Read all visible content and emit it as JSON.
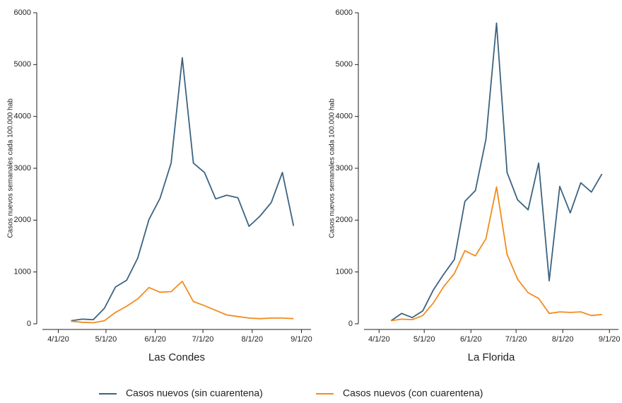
{
  "chart_data": [
    {
      "type": "line",
      "title": "Las Condes",
      "y_label": "Casos nuevos semanales cada 100.000 hab",
      "x": [
        "4/9/20",
        "4/16/20",
        "4/23/20",
        "4/30/20",
        "5/7/20",
        "5/14/20",
        "5/21/20",
        "5/28/20",
        "6/4/20",
        "6/11/20",
        "6/18/20",
        "6/25/20",
        "7/2/20",
        "7/9/20",
        "7/16/20",
        "7/23/20",
        "7/30/20",
        "8/6/20",
        "8/13/20",
        "8/20/20",
        "8/27/20"
      ],
      "series": [
        {
          "name": "Casos nuevos (sin cuarentena)",
          "color": "#3b6380",
          "values": [
            60,
            90,
            80,
            300,
            710,
            840,
            1270,
            2010,
            2420,
            3100,
            5130,
            3100,
            2920,
            2410,
            2480,
            2430,
            1880,
            2080,
            2340,
            2920,
            1890
          ]
        },
        {
          "name": "Casos nuevos (con cuarentena)",
          "color": "#f28c1e",
          "values": [
            50,
            30,
            20,
            60,
            220,
            340,
            480,
            700,
            610,
            620,
            820,
            430,
            350,
            260,
            170,
            140,
            110,
            100,
            110,
            110,
            100
          ]
        }
      ],
      "xlim": [
        "3/22/20",
        "9/7/20"
      ],
      "xticks": [
        "4/1/20",
        "5/1/20",
        "6/1/20",
        "7/1/20",
        "8/1/20",
        "9/1/20"
      ],
      "ylim": [
        0,
        6000
      ],
      "yticks": [
        0,
        1000,
        2000,
        3000,
        4000,
        5000,
        6000
      ]
    },
    {
      "type": "line",
      "title": "La Florida",
      "y_label": "Casos nuevos semanales cada 100.000 hab",
      "x": [
        "4/9/20",
        "4/16/20",
        "4/23/20",
        "4/30/20",
        "5/7/20",
        "5/14/20",
        "5/21/20",
        "5/28/20",
        "6/4/20",
        "6/11/20",
        "6/18/20",
        "6/25/20",
        "7/2/20",
        "7/9/20",
        "7/16/20",
        "7/23/20",
        "7/30/20",
        "8/6/20",
        "8/13/20",
        "8/20/20",
        "8/27/20"
      ],
      "series": [
        {
          "name": "Casos nuevos (sin cuarentena)",
          "color": "#3b6380",
          "values": [
            60,
            200,
            120,
            250,
            650,
            960,
            1240,
            2360,
            2570,
            3560,
            5800,
            2920,
            2390,
            2200,
            3100,
            830,
            2650,
            2140,
            2720,
            2540,
            2890
          ]
        },
        {
          "name": "Casos nuevos (con cuarentena)",
          "color": "#f28c1e",
          "values": [
            60,
            90,
            80,
            160,
            400,
            720,
            970,
            1410,
            1310,
            1640,
            2640,
            1340,
            860,
            600,
            490,
            200,
            230,
            220,
            230,
            160,
            180
          ]
        }
      ],
      "xlim": [
        "3/22/20",
        "9/7/20"
      ],
      "xticks": [
        "4/1/20",
        "5/1/20",
        "6/1/20",
        "7/1/20",
        "8/1/20",
        "9/1/20"
      ],
      "ylim": [
        0,
        6000
      ],
      "yticks": [
        0,
        1000,
        2000,
        3000,
        4000,
        5000,
        6000
      ]
    }
  ]
}
